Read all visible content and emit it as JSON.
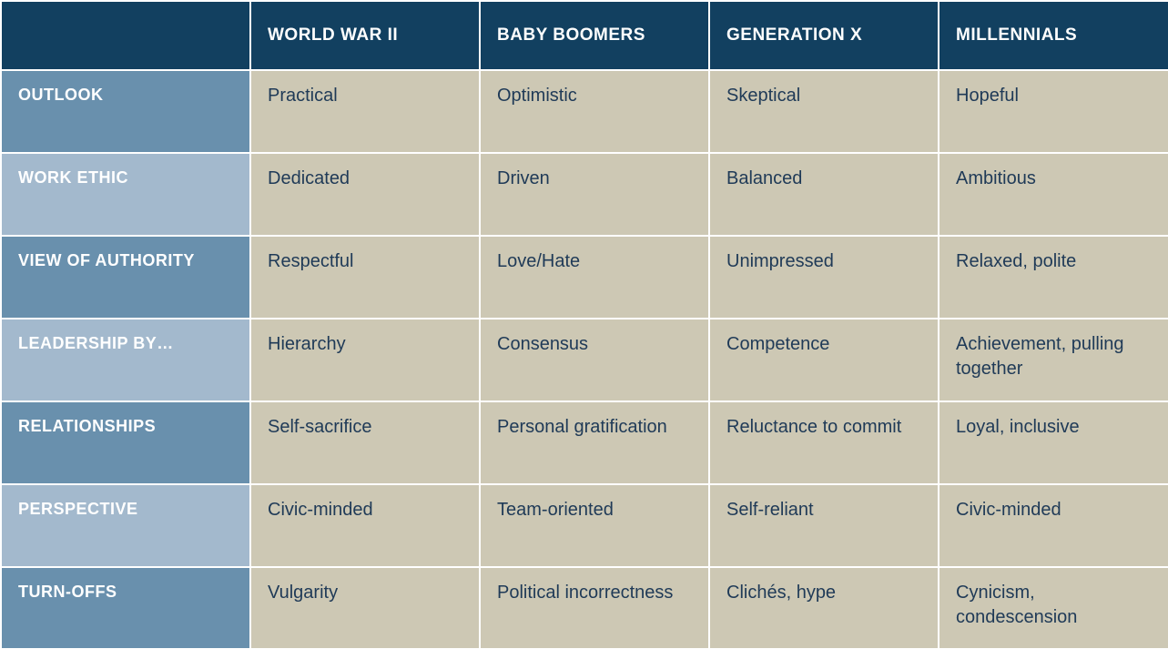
{
  "layout": {
    "col_widths": [
      "274px",
      "252px",
      "252px",
      "252px",
      "253px"
    ],
    "row_heights": [
      "76px",
      "91px",
      "91px",
      "91px",
      "91px",
      "91px",
      "91px",
      "90px"
    ]
  },
  "colors": {
    "header_top_bg": "#124060",
    "header_top_fg": "#ffffff",
    "row_label_dark_bg": "#6990ad",
    "row_label_light_bg": "#a3b9cd",
    "row_label_fg": "#ffffff",
    "body_bg": "#cdc8b4",
    "body_fg": "#1f3a57",
    "grid_line": "#ffffff"
  },
  "columns": [
    "",
    "WORLD WAR II",
    "BABY BOOMERS",
    "GENERATION X",
    "MILLENNIALS"
  ],
  "rows": [
    {
      "label": "OUTLOOK",
      "shade": "dark",
      "cells": [
        "Practical",
        "Optimistic",
        "Skeptical",
        "Hopeful"
      ]
    },
    {
      "label": "WORK ETHIC",
      "shade": "light",
      "cells": [
        "Dedicated",
        "Driven",
        "Balanced",
        "Ambitious"
      ]
    },
    {
      "label": "VIEW OF AUTHORITY",
      "shade": "dark",
      "cells": [
        "Respectful",
        "Love/Hate",
        "Unimpressed",
        "Relaxed, polite"
      ]
    },
    {
      "label": "LEADERSHIP BY…",
      "shade": "light",
      "cells": [
        "Hierarchy",
        "Consensus",
        "Competence",
        "Achievement, pulling together"
      ]
    },
    {
      "label": "RELATIONSHIPS",
      "shade": "dark",
      "cells": [
        "Self-sacrifice",
        "Personal gratification",
        "Reluctance to commit",
        "Loyal, inclusive"
      ]
    },
    {
      "label": "PERSPECTIVE",
      "shade": "light",
      "cells": [
        "Civic-minded",
        "Team-oriented",
        "Self-reliant",
        "Civic-minded"
      ]
    },
    {
      "label": "TURN-OFFS",
      "shade": "dark",
      "cells": [
        "Vulgarity",
        "Political incorrectness",
        "Clichés, hype",
        "Cynicism, condescension"
      ]
    }
  ]
}
